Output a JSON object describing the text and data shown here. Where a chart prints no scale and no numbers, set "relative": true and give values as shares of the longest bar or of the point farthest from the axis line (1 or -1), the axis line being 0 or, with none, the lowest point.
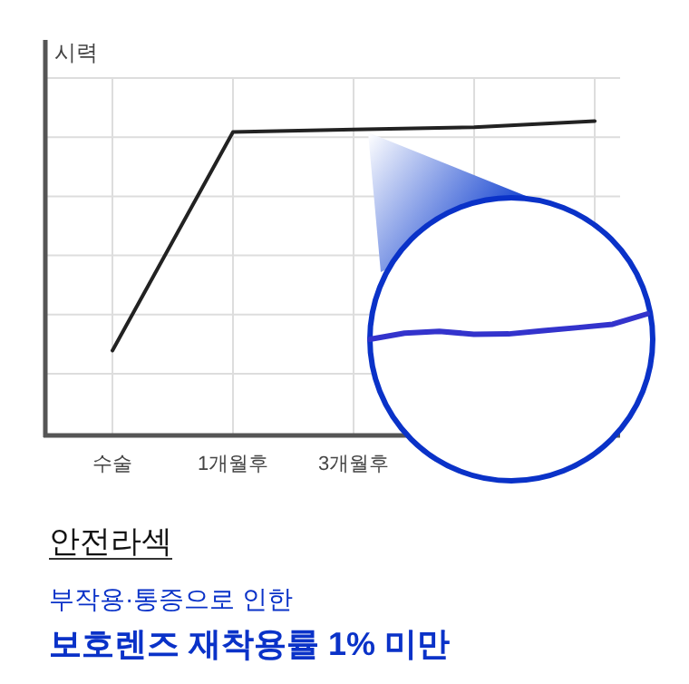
{
  "chart_data": [
    {
      "type": "line",
      "relative": true,
      "ylabel": "시력",
      "title": "안전라섹",
      "annotations": [
        "부작용·통증으로 인한",
        "보호렌즈 재착용률 1% 미만"
      ],
      "categories": [
        "수술",
        "1개월후",
        "3개월후",
        null,
        null
      ],
      "series": [
        {
          "color": "#222222",
          "values": [
            0.27,
            0.965,
            0.973,
            0.98,
            1.0
          ]
        }
      ],
      "grid": true,
      "marker": "none",
      "line_style": "solid"
    },
    {
      "type": "line",
      "relative": true,
      "categories": [
        null,
        null,
        null,
        null,
        null,
        null,
        null,
        null,
        null
      ],
      "series": [
        {
          "color": "#3333cc",
          "values": [
            0,
            0.24,
            0.31,
            0.2,
            0.21,
            0.34,
            0.46,
            0.59,
            1.0
          ]
        }
      ],
      "line_style": "solid"
    }
  ]
}
